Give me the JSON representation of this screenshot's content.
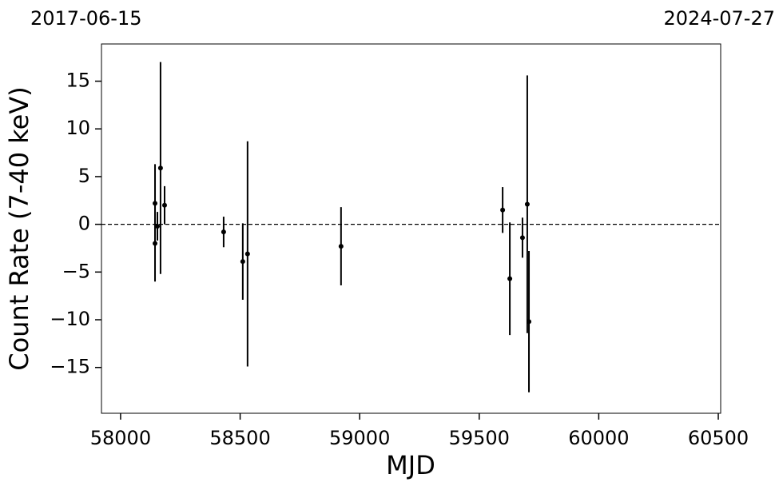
{
  "chart_data": {
    "type": "errorbar",
    "annotations": [
      "2017-06-15",
      "2024-07-27"
    ],
    "xlabel": "MJD",
    "ylabel": "Count Rate (7-40 keV)",
    "color": "#000000",
    "x": [
      58144,
      58144,
      58154,
      58167,
      58184,
      58431,
      58511,
      58531,
      58922,
      59598,
      59628,
      59681,
      59701,
      59708
    ],
    "values": [
      2.2,
      -2.0,
      -0.2,
      5.9,
      2.0,
      -0.8,
      -3.9,
      -3.1,
      -2.3,
      1.5,
      -5.7,
      -1.4,
      2.1,
      -10.2
    ],
    "errors": [
      4.1,
      4.0,
      1.5,
      11.1,
      2.0,
      1.6,
      4.0,
      11.8,
      4.1,
      2.4,
      5.9,
      2.1,
      13.5,
      7.4
    ],
    "reference_line": 0,
    "xlim": [
      57920,
      60510
    ],
    "ylim": [
      -19.8,
      18.9
    ],
    "xticks": [
      58000,
      58500,
      59000,
      59500,
      60000,
      60500
    ],
    "yticks": [
      {
        "value": -15,
        "label": "−15"
      },
      {
        "value": -10,
        "label": "−10"
      },
      {
        "value": -5,
        "label": "−5"
      },
      0,
      5,
      10,
      15
    ]
  }
}
